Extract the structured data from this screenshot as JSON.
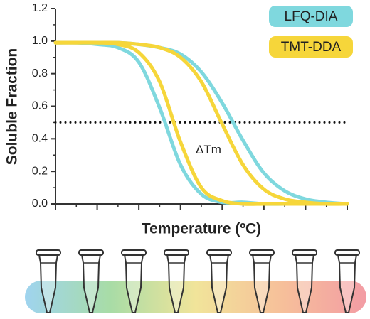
{
  "chart_data": {
    "type": "line",
    "xlabel": "Temperature (ºC)",
    "ylabel": "Soluble Fraction",
    "x": [
      0,
      0.5,
      1,
      1.5,
      2,
      2.5,
      3,
      3.5,
      4,
      4.5,
      5,
      5.5,
      6,
      6.5,
      7
    ],
    "xlim": [
      0,
      7
    ],
    "xticks": [
      0,
      1,
      2,
      3,
      4,
      5,
      6,
      7
    ],
    "ylim": [
      0,
      1.2
    ],
    "yticks": [
      {
        "value": 0,
        "label": "0.0"
      },
      0.2,
      0.4,
      0.6,
      0.8,
      {
        "value": 1,
        "label": "1.0"
      },
      1.2
    ],
    "hline": 0.5,
    "annotation": "ΔTm",
    "series": [
      {
        "name": "LFQ-DIA",
        "color": "#7fd8de",
        "values": [
          0.99,
          0.99,
          0.98,
          0.96,
          0.87,
          0.59,
          0.24,
          0.06,
          0.01,
          0.01,
          0,
          0,
          0,
          0,
          0
        ]
      },
      {
        "name": "TMT-DDA",
        "color": "#f6d63a",
        "values": [
          0.99,
          0.99,
          0.99,
          0.98,
          0.93,
          0.75,
          0.38,
          0.1,
          0.02,
          0,
          0,
          0,
          0,
          0,
          0
        ]
      },
      {
        "name": "TMT-DDA",
        "color": "#f6d63a",
        "values": [
          0.99,
          0.99,
          0.99,
          0.99,
          0.98,
          0.96,
          0.9,
          0.75,
          0.49,
          0.24,
          0.09,
          0.03,
          0.01,
          0,
          0
        ]
      },
      {
        "name": "LFQ-DIA",
        "color": "#7fd8de",
        "values": [
          0.99,
          0.99,
          0.99,
          0.99,
          0.98,
          0.96,
          0.92,
          0.81,
          0.62,
          0.39,
          0.19,
          0.08,
          0.03,
          0.01,
          0
        ]
      }
    ]
  }
}
